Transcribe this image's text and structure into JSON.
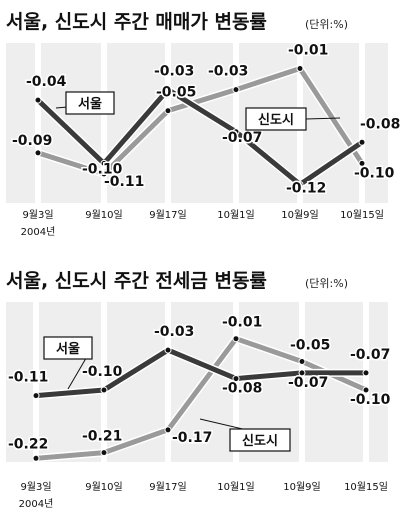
{
  "chart_data": [
    {
      "type": "line",
      "title": "서울, 신도시 주간 매매가 변동률",
      "unit_label": "(단위:%)",
      "categories": [
        "9월3일",
        "9월10일",
        "9월17일",
        "10월1일",
        "10월9일",
        "10월15일"
      ],
      "year_label": "2004년",
      "ylim": [
        -0.13,
        0.0
      ],
      "grid": false,
      "series": [
        {
          "name": "서울",
          "color": "#3a3a3a",
          "values": [
            -0.04,
            -0.1,
            -0.03,
            -0.07,
            -0.12,
            -0.08
          ],
          "labels": [
            "-0.04",
            "-0.10",
            "-0.03",
            "-0.07",
            "-0.12",
            "-0.08"
          ]
        },
        {
          "name": "신도시",
          "color": "#9a9a9a",
          "values": [
            -0.09,
            -0.11,
            -0.05,
            -0.03,
            -0.01,
            -0.1
          ],
          "labels": [
            "-0.09",
            "-0.11",
            "-0.05",
            "-0.03",
            "-0.01",
            "-0.10"
          ]
        }
      ]
    },
    {
      "type": "line",
      "title": "서울, 신도시 주간 전세금 변동률",
      "unit_label": "(단위:%)",
      "categories": [
        "9월3일",
        "9월10일",
        "9월17일",
        "10월1일",
        "10월9일",
        "10월15일"
      ],
      "year_label": "2004년",
      "ylim": [
        -0.23,
        0.0
      ],
      "grid": false,
      "series": [
        {
          "name": "서울",
          "color": "#3a3a3a",
          "values": [
            -0.11,
            -0.1,
            -0.03,
            -0.08,
            -0.07,
            -0.07
          ],
          "labels": [
            "-0.11",
            "-0.10",
            "-0.03",
            "-0.08",
            "-0.07",
            "-0.07"
          ]
        },
        {
          "name": "신도시",
          "color": "#9a9a9a",
          "values": [
            -0.22,
            -0.21,
            -0.17,
            -0.01,
            -0.05,
            -0.1
          ],
          "labels": [
            "-0.22",
            "-0.21",
            "-0.17",
            "-0.01",
            "-0.05",
            "-0.10"
          ]
        }
      ]
    }
  ]
}
